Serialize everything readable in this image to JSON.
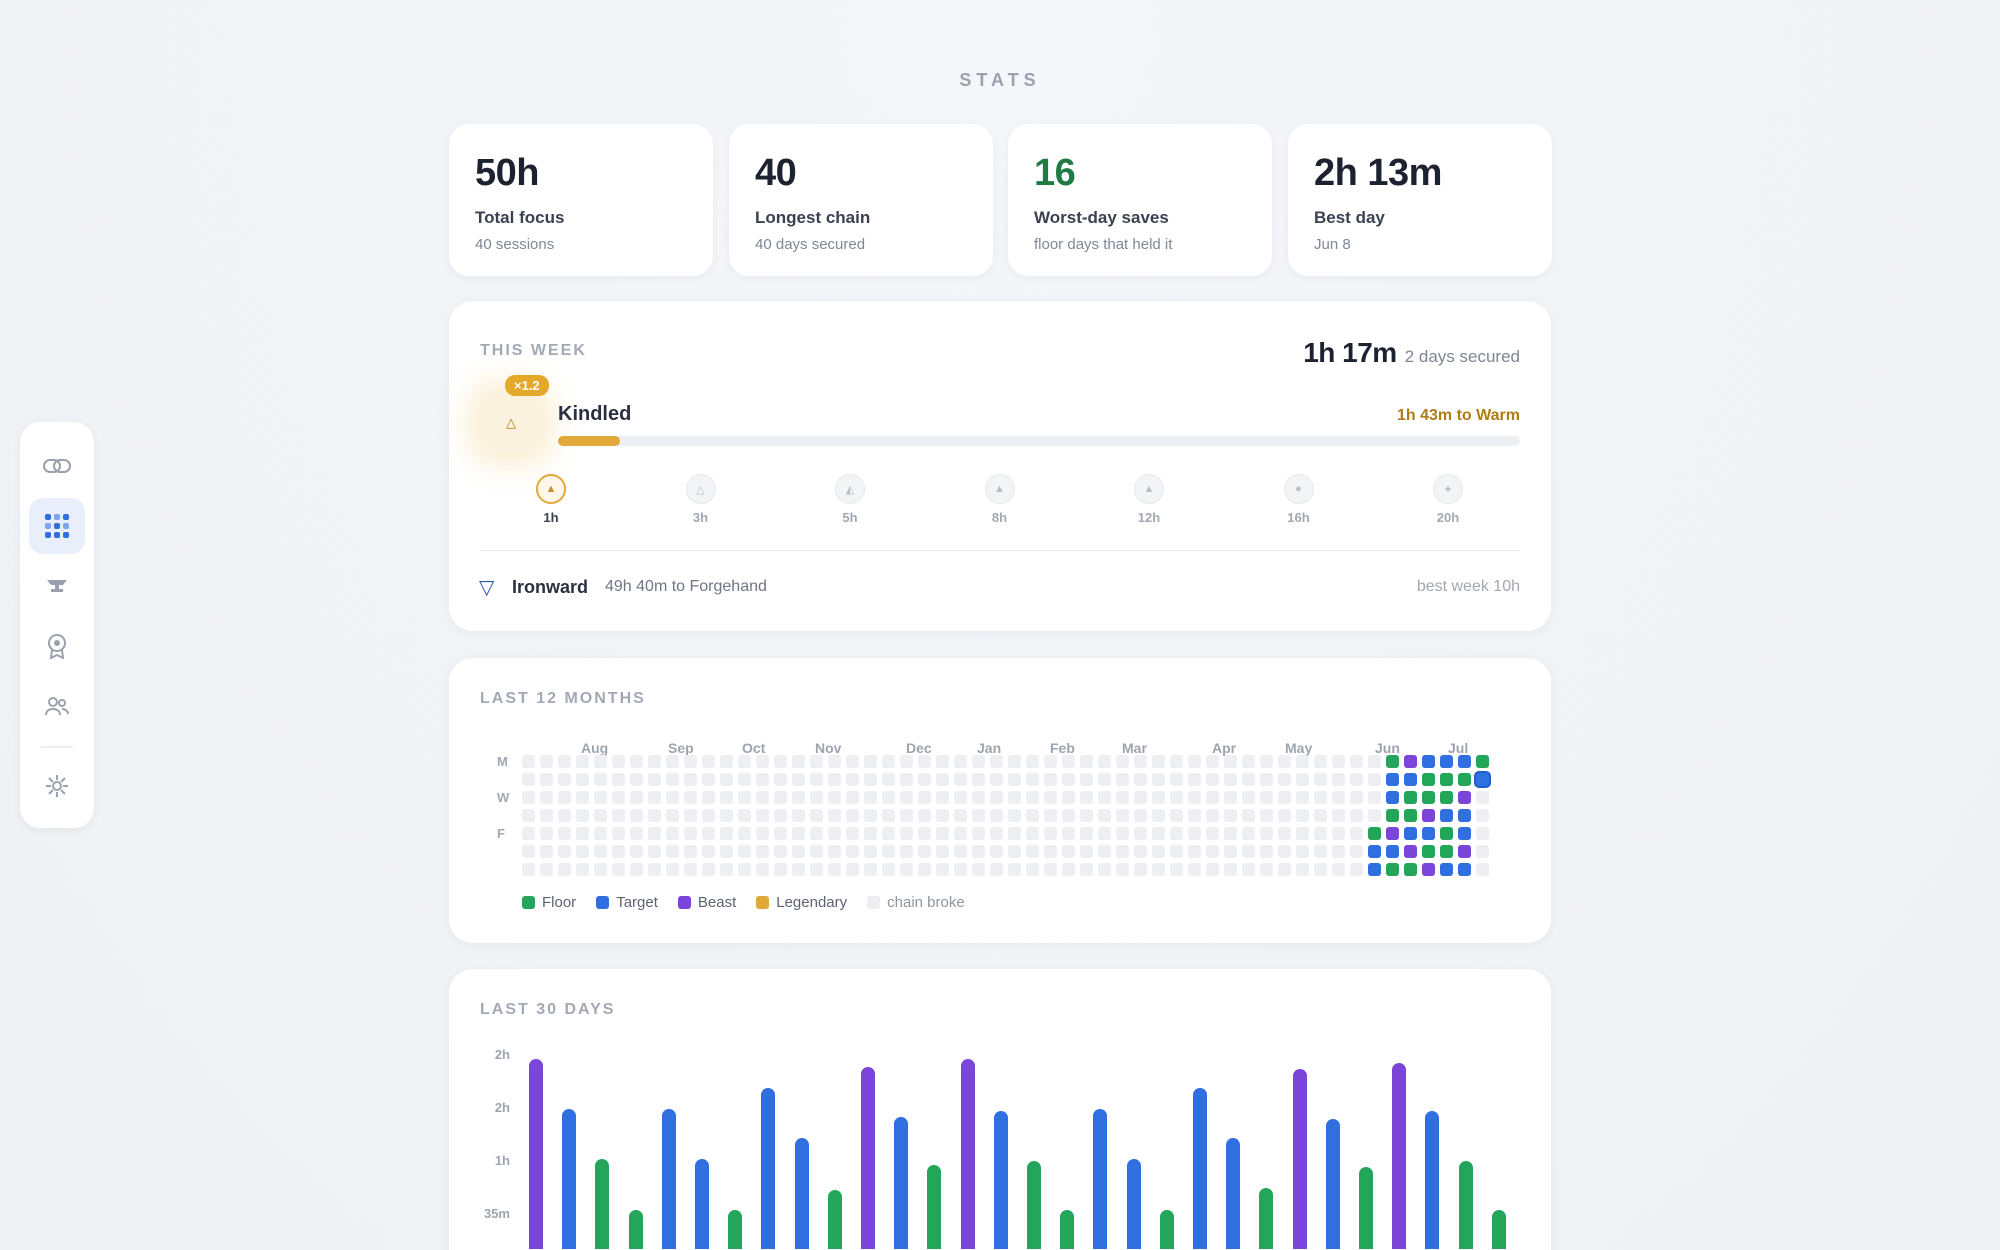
{
  "page_title": "STATS",
  "sidebar": {
    "items": [
      {
        "name": "link-icon"
      },
      {
        "name": "grid-icon",
        "active": true
      },
      {
        "name": "anvil-icon"
      },
      {
        "name": "award-icon"
      },
      {
        "name": "users-icon"
      },
      {
        "name": "settings-icon"
      }
    ]
  },
  "stats": [
    {
      "value": "50h",
      "label": "Total focus",
      "sub": "40 sessions",
      "color": "#1c2230"
    },
    {
      "value": "40",
      "label": "Longest chain",
      "sub": "40 days secured",
      "color": "#1c2230"
    },
    {
      "value": "16",
      "label": "Worst-day saves",
      "sub": "floor days that held it",
      "color": "#1f7a44"
    },
    {
      "value": "2h 13m",
      "label": "Best day",
      "sub": "Jun 8",
      "color": "#1c2230"
    }
  ],
  "week": {
    "title": "THIS WEEK",
    "total": "1h 17m",
    "total_sub": "2 days secured",
    "tier_multiplier": "×1.2",
    "tier_name": "Kindled",
    "tier_next": "1h 43m to Warm",
    "tier_progress": 0.064,
    "milestones": [
      "1h",
      "3h",
      "5h",
      "8h",
      "12h",
      "16h",
      "20h"
    ],
    "active_milestone": 0,
    "rank_name": "Ironward",
    "rank_next": "49h 40m to Forgehand",
    "best_week": "best week 10h"
  },
  "heatmap": {
    "title": "LAST 12 MONTHS",
    "months": [
      "Aug",
      "Sep",
      "Oct",
      "Nov",
      "Dec",
      "Jan",
      "Feb",
      "Mar",
      "Apr",
      "May",
      "Jun",
      "Jul"
    ],
    "day_labels": [
      "M",
      "W",
      "F"
    ],
    "legend": [
      {
        "label": "Floor",
        "color": "#23a55a"
      },
      {
        "label": "Target",
        "color": "#2f6fe0"
      },
      {
        "label": "Beast",
        "color": "#7b45d9"
      },
      {
        "label": "Legendary",
        "color": "#e1a83a"
      },
      {
        "label": "chain broke",
        "color": "#eeeff2"
      }
    ]
  },
  "chart_data": {
    "type": "bar",
    "title": "LAST 30 DAYS",
    "yticks": [
      "2h",
      "2h",
      "1h",
      "35m"
    ],
    "colors": {
      "floor": "#23a55a",
      "target": "#2f6fe0",
      "beast": "#7b45d9"
    },
    "values_min": [
      133,
      107,
      81,
      55,
      107,
      81,
      55,
      118,
      92,
      65,
      129,
      103,
      78,
      133,
      106,
      80,
      55,
      107,
      81,
      55,
      118,
      92,
      66,
      128,
      102,
      77,
      131,
      106,
      80,
      55
    ],
    "kinds": [
      "beast",
      "target",
      "floor",
      "floor",
      "target",
      "target",
      "floor",
      "target",
      "target",
      "floor",
      "beast",
      "target",
      "floor",
      "beast",
      "target",
      "floor",
      "floor",
      "target",
      "target",
      "floor",
      "target",
      "target",
      "floor",
      "beast",
      "target",
      "floor",
      "beast",
      "target",
      "floor",
      "floor"
    ]
  }
}
